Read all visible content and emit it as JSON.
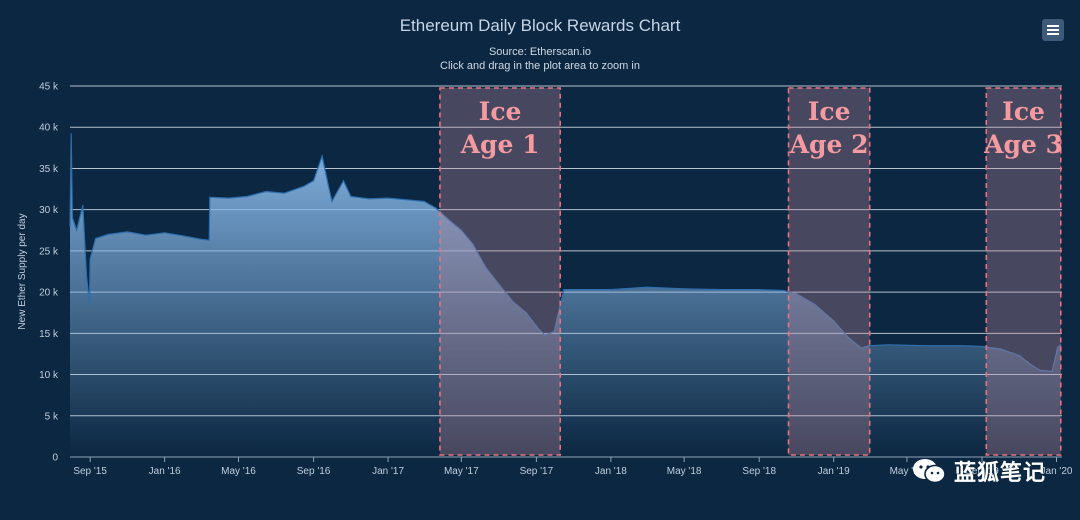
{
  "chart_data": {
    "type": "area",
    "title": "Ethereum Daily Block Rewards Chart",
    "source": "Source: Etherscan.io",
    "zoom_hint": "Click and drag in the plot area to zoom in",
    "ylabel": "New Ether Supply per day",
    "xlabel": "",
    "ylim": [
      0,
      45000
    ],
    "yticks": [
      0,
      5000,
      10000,
      15000,
      20000,
      25000,
      30000,
      35000,
      40000,
      45000
    ],
    "ytick_labels": [
      "0",
      "5 k",
      "10 k",
      "15 k",
      "20 k",
      "25 k",
      "30 k",
      "35 k",
      "40 k",
      "45 k"
    ],
    "x_range": [
      "2015-07-30",
      "2020-01-10"
    ],
    "xticks": [
      "2015-09-01",
      "2016-01-01",
      "2016-05-01",
      "2016-09-01",
      "2017-01-01",
      "2017-05-01",
      "2017-09-01",
      "2018-01-01",
      "2018-05-01",
      "2018-09-01",
      "2019-01-01",
      "2019-05-01",
      "2019-09-01",
      "2020-01-01"
    ],
    "xtick_labels": [
      "Sep '15",
      "Jan '16",
      "May '16",
      "Sep '16",
      "Jan '17",
      "May '17",
      "Sep '17",
      "Jan '18",
      "May '18",
      "Sep '18",
      "Jan '19",
      "May '19",
      "Sep '19",
      "Jan '20"
    ],
    "grid": true,
    "series": [
      {
        "name": "New Ether Supply per day",
        "color": "#7aaee0",
        "points": [
          [
            "2015-07-30",
            28000
          ],
          [
            "2015-08-01",
            39200
          ],
          [
            "2015-08-03",
            29000
          ],
          [
            "2015-08-10",
            27500
          ],
          [
            "2015-08-20",
            30500
          ],
          [
            "2015-08-26",
            22000
          ],
          [
            "2015-08-31",
            18500
          ],
          [
            "2015-09-01",
            24000
          ],
          [
            "2015-09-10",
            26500
          ],
          [
            "2015-10-01",
            27000
          ],
          [
            "2015-11-01",
            27300
          ],
          [
            "2015-12-01",
            26900
          ],
          [
            "2016-01-01",
            27200
          ],
          [
            "2016-02-01",
            26800
          ],
          [
            "2016-03-01",
            26400
          ],
          [
            "2016-03-14",
            26300
          ],
          [
            "2016-03-15",
            31500
          ],
          [
            "2016-04-15",
            31400
          ],
          [
            "2016-05-15",
            31600
          ],
          [
            "2016-06-15",
            32200
          ],
          [
            "2016-07-15",
            32000
          ],
          [
            "2016-08-15",
            32800
          ],
          [
            "2016-09-01",
            33500
          ],
          [
            "2016-09-15",
            36500
          ],
          [
            "2016-09-25",
            33000
          ],
          [
            "2016-10-01",
            31000
          ],
          [
            "2016-10-20",
            33500
          ],
          [
            "2016-11-01",
            31600
          ],
          [
            "2016-12-01",
            31300
          ],
          [
            "2017-01-01",
            31400
          ],
          [
            "2017-02-01",
            31200
          ],
          [
            "2017-03-01",
            31000
          ],
          [
            "2017-03-20",
            30200
          ],
          [
            "2017-04-10",
            28800
          ],
          [
            "2017-05-01",
            27500
          ],
          [
            "2017-05-20",
            25800
          ],
          [
            "2017-06-10",
            23000
          ],
          [
            "2017-07-01",
            21000
          ],
          [
            "2017-07-25",
            18800
          ],
          [
            "2017-08-15",
            17500
          ],
          [
            "2017-09-05",
            15500
          ],
          [
            "2017-09-15",
            14800
          ],
          [
            "2017-09-30",
            15200
          ],
          [
            "2017-10-16",
            20300
          ],
          [
            "2018-01-01",
            20300
          ],
          [
            "2018-03-01",
            20600
          ],
          [
            "2018-05-01",
            20400
          ],
          [
            "2018-07-01",
            20300
          ],
          [
            "2018-09-01",
            20300
          ],
          [
            "2018-10-10",
            20200
          ],
          [
            "2018-11-01",
            19800
          ],
          [
            "2018-12-01",
            18500
          ],
          [
            "2019-01-01",
            16500
          ],
          [
            "2019-01-25",
            14500
          ],
          [
            "2019-02-15",
            13200
          ],
          [
            "2019-02-28",
            13500
          ],
          [
            "2019-04-01",
            13600
          ],
          [
            "2019-06-01",
            13500
          ],
          [
            "2019-08-01",
            13500
          ],
          [
            "2019-09-01",
            13400
          ],
          [
            "2019-10-01",
            13100
          ],
          [
            "2019-11-01",
            12300
          ],
          [
            "2019-11-20",
            11200
          ],
          [
            "2019-12-05",
            10500
          ],
          [
            "2019-12-25",
            10400
          ],
          [
            "2020-01-03",
            13300
          ],
          [
            "2020-01-08",
            13600
          ]
        ]
      }
    ],
    "annotations": [
      {
        "name": "ice-age-1",
        "label_line1": "Ice",
        "label_line2": "Age 1",
        "start": "2017-03-27",
        "end": "2017-10-10",
        "color": "#e8737e"
      },
      {
        "name": "ice-age-2",
        "label_line1": "Ice",
        "label_line2": "Age 2",
        "start": "2018-10-19",
        "end": "2019-03-01",
        "color": "#e8737e"
      },
      {
        "name": "ice-age-3",
        "label_line1": "Ice",
        "label_line2": "Age 3",
        "start": "2019-09-08",
        "end": "2020-01-08",
        "color": "#e8737e"
      }
    ]
  },
  "menu": {
    "icon": "hamburger-menu-icon"
  },
  "watermark": {
    "icon": "wechat-icon",
    "text": "蓝狐笔记"
  }
}
